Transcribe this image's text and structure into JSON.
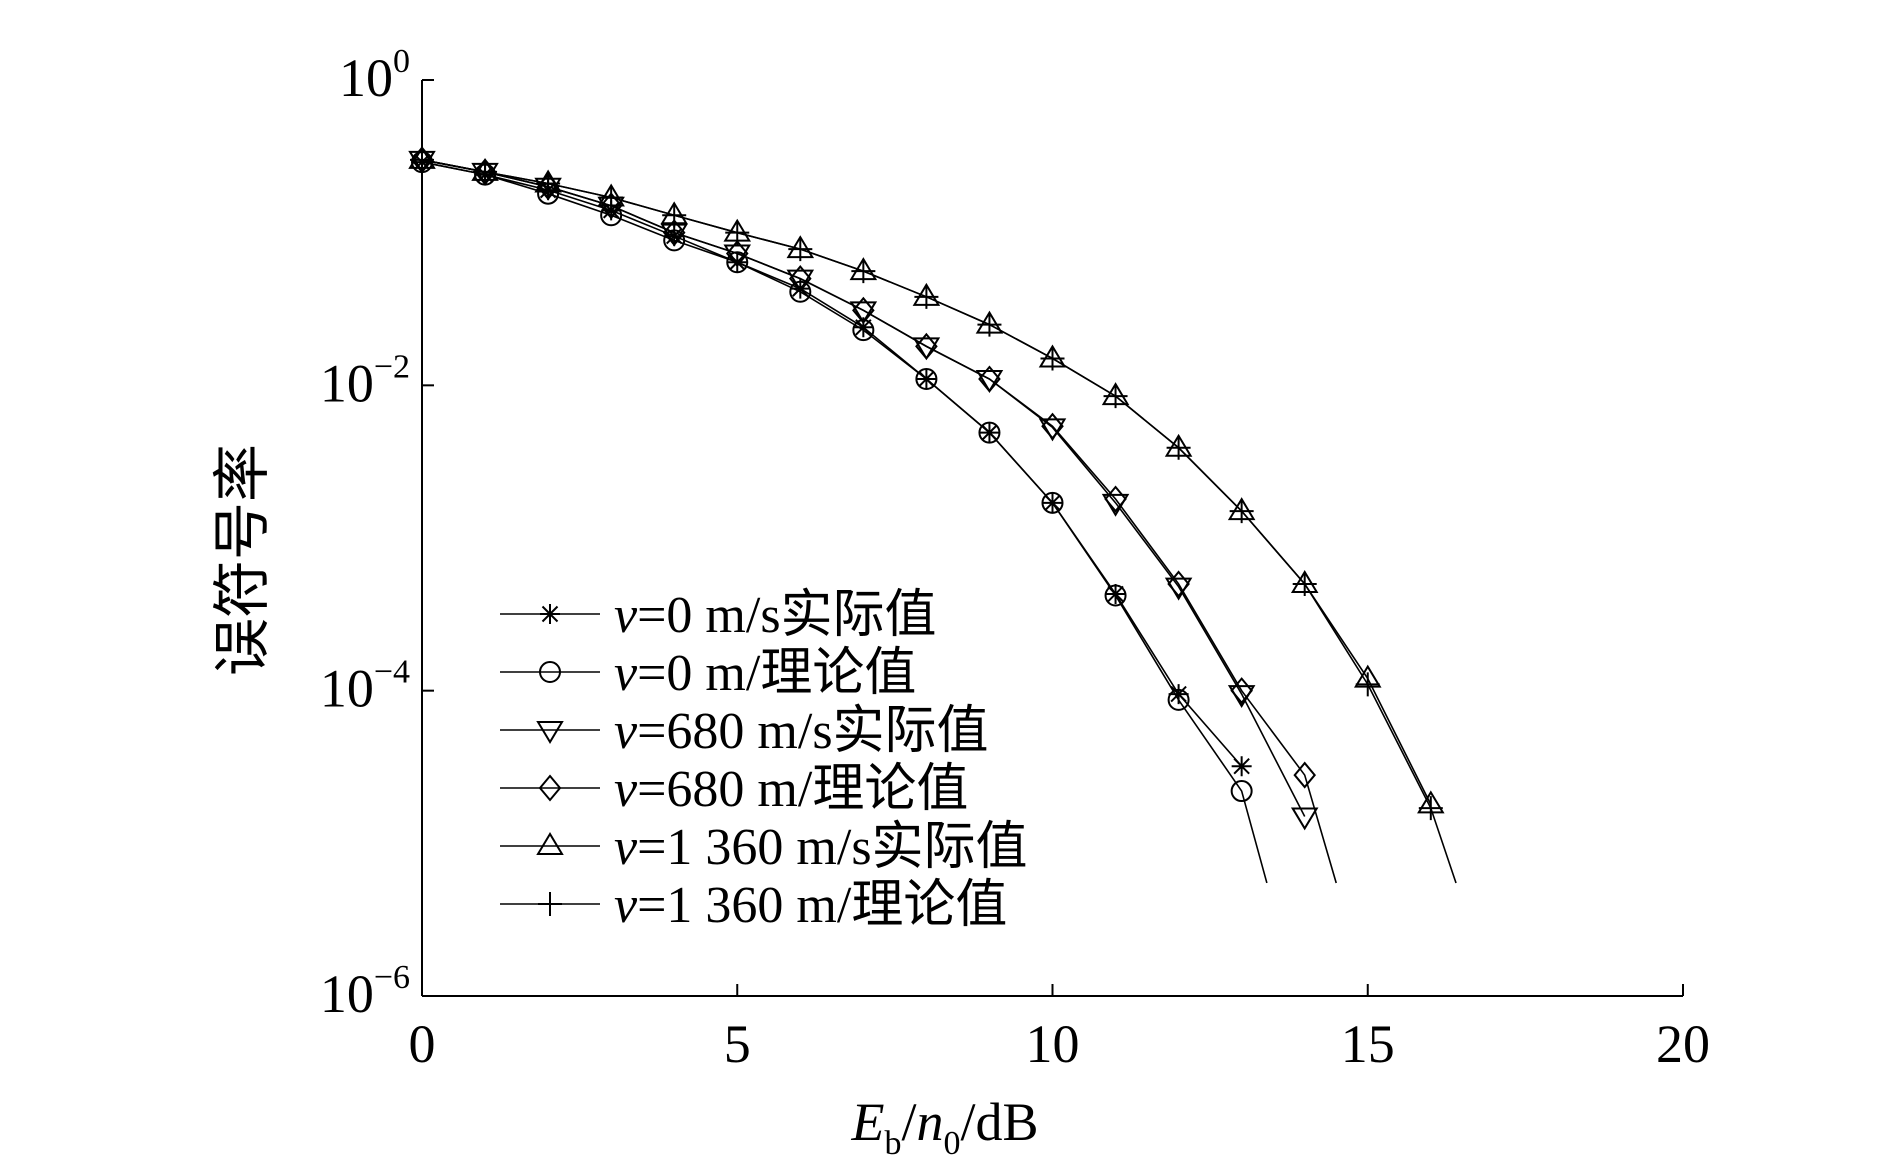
{
  "chart_data": {
    "type": "line",
    "title": "",
    "xlabel": {
      "main": "E",
      "sub": "b",
      "slash": "/",
      "var": "n",
      "sub2": "0",
      "unit": "/dB"
    },
    "ylabel": "误符号率",
    "xlim": [
      0,
      20
    ],
    "ylim": [
      1e-06,
      1
    ],
    "yscale": "log",
    "grid": false,
    "legend_position": "lower-left",
    "x_ticks": [
      "0",
      "5",
      "10",
      "15",
      "20"
    ],
    "y_ticks": [
      {
        "base": "10",
        "exp": "0",
        "value": 1
      },
      {
        "base": "10",
        "exp": "−2",
        "value": 0.01
      },
      {
        "base": "10",
        "exp": "−4",
        "value": 0.0001
      },
      {
        "base": "10",
        "exp": "−6",
        "value": 1e-06
      }
    ],
    "series": [
      {
        "name": "v=0 m/s实际值",
        "name_var": "v",
        "name_rest": "=0 m/s实际值",
        "marker": "star",
        "x": [
          0,
          1,
          2,
          3,
          4,
          5,
          6,
          7,
          8,
          9,
          10,
          11,
          12,
          13
        ],
        "y": [
          0.29,
          0.24,
          0.19,
          0.14,
          0.095,
          0.064,
          0.043,
          0.024,
          0.011,
          0.0049,
          0.0017,
          0.00043,
          9.5e-05,
          3.2e-05
        ]
      },
      {
        "name": "v=0 m/理论值",
        "name_var": "v",
        "name_rest": "=0 m/理论值",
        "marker": "circle",
        "x": [
          0,
          1,
          2,
          3,
          4,
          5,
          6,
          7,
          8,
          9,
          10,
          11,
          12,
          13,
          13.4
        ],
        "y": [
          0.29,
          0.24,
          0.18,
          0.13,
          0.089,
          0.064,
          0.041,
          0.023,
          0.011,
          0.0049,
          0.0017,
          0.00042,
          8.7e-05,
          2.2e-05,
          5.5e-06
        ]
      },
      {
        "name": "v=680 m/s实际值",
        "name_var": "v",
        "name_rest": "=680 m/s实际值",
        "marker": "tri-down",
        "x": [
          0,
          1,
          2,
          3,
          4,
          5,
          6,
          7,
          8,
          9,
          10,
          11,
          12,
          13,
          14
        ],
        "y": [
          0.3,
          0.25,
          0.2,
          0.15,
          0.1,
          0.073,
          0.05,
          0.031,
          0.018,
          0.011,
          0.0053,
          0.0017,
          0.00048,
          9.5e-05,
          1.5e-05
        ]
      },
      {
        "name": "v=680 m/理论值",
        "name_var": "v",
        "name_rest": "=680 m/理论值",
        "marker": "diamond",
        "x": [
          0,
          1,
          2,
          3,
          4,
          5,
          6,
          7,
          8,
          9,
          10,
          11,
          12,
          13,
          14,
          14.5
        ],
        "y": [
          0.3,
          0.25,
          0.2,
          0.15,
          0.1,
          0.073,
          0.05,
          0.031,
          0.018,
          0.011,
          0.0054,
          0.0018,
          0.0005,
          0.0001,
          2.8e-05,
          5.5e-06
        ]
      },
      {
        "name": "v=1 360 m/s实际值",
        "name_var": "v",
        "name_rest": "=1 360 m/s实际值",
        "marker": "tri-up",
        "x": [
          0,
          1,
          2,
          3,
          4,
          5,
          6,
          7,
          8,
          9,
          10,
          11,
          12,
          13,
          14,
          15,
          16
        ],
        "y": [
          0.3,
          0.25,
          0.21,
          0.17,
          0.13,
          0.1,
          0.078,
          0.056,
          0.038,
          0.025,
          0.015,
          0.0085,
          0.0039,
          0.0015,
          0.0005,
          0.00012,
          1.8e-05
        ]
      },
      {
        "name": "v=1 360 m/理论值",
        "name_var": "v",
        "name_rest": "=1 360 m/理论值",
        "marker": "plus",
        "x": [
          0,
          1,
          2,
          3,
          4,
          5,
          6,
          7,
          8,
          9,
          10,
          11,
          12,
          13,
          14,
          15,
          16,
          16.4
        ],
        "y": [
          0.3,
          0.25,
          0.21,
          0.17,
          0.13,
          0.1,
          0.078,
          0.056,
          0.038,
          0.025,
          0.015,
          0.0085,
          0.0039,
          0.0015,
          0.0005,
          0.00011,
          1.7e-05,
          5.5e-06
        ]
      }
    ]
  }
}
